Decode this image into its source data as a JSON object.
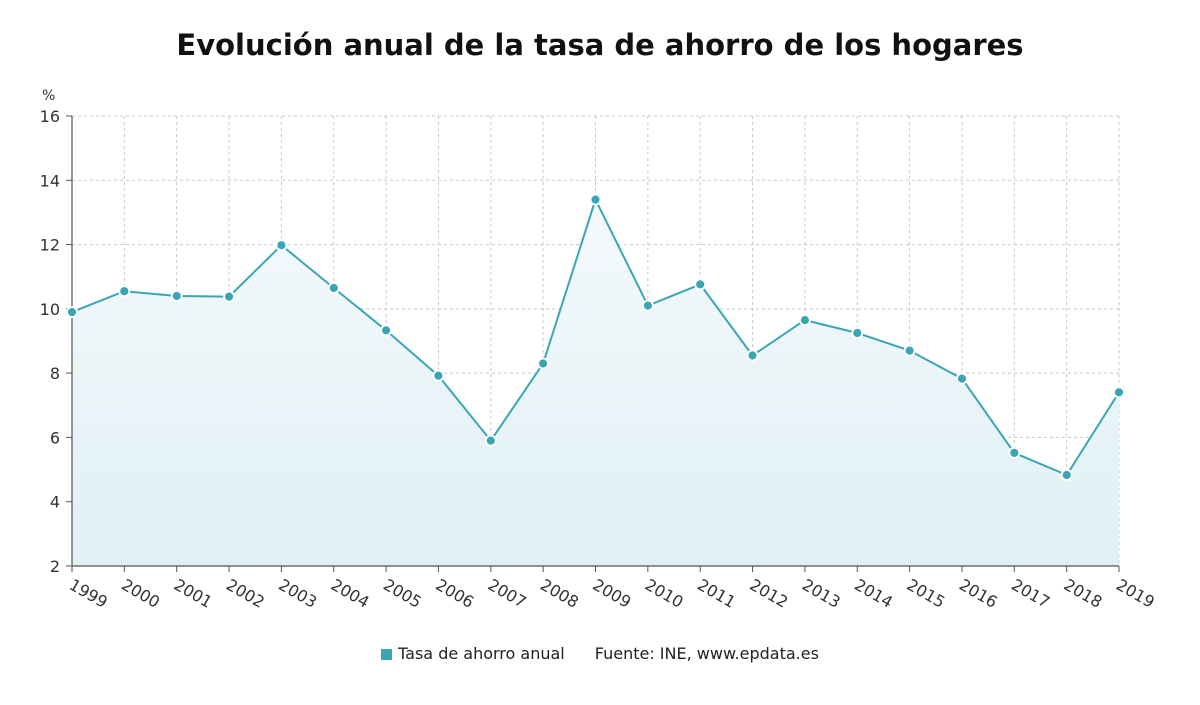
{
  "chart_data": {
    "type": "area",
    "title": "Evolución anual de la tasa de ahorro de los hogares",
    "ylabel": "%",
    "ylim": [
      2,
      16
    ],
    "yticks": [
      2,
      4,
      6,
      8,
      10,
      12,
      14,
      16
    ],
    "categories": [
      "1999",
      "2000",
      "2001",
      "2002",
      "2003",
      "2004",
      "2005",
      "2006",
      "2007",
      "2008",
      "2009",
      "2010",
      "2011",
      "2012",
      "2013",
      "2014",
      "2015",
      "2016",
      "2017",
      "2018",
      "2019"
    ],
    "series": [
      {
        "name": "Tasa de ahorro anual",
        "values": [
          9.9,
          10.55,
          10.4,
          10.38,
          11.98,
          10.65,
          9.33,
          7.92,
          5.9,
          8.3,
          13.4,
          10.1,
          10.76,
          8.55,
          9.65,
          9.25,
          8.7,
          7.83,
          5.52,
          4.83,
          7.4
        ]
      }
    ],
    "grid": true,
    "legend_position": "bottom",
    "source": "Fuente: INE, www.epdata.es",
    "colors": {
      "line": "#3aa6b3",
      "marker": "#3aa6b3",
      "fill_top": "#f5f9fd",
      "fill_bottom": "#dff0f3",
      "grid": "#c8c8c8",
      "axis": "#555555",
      "legend_swatch": "#3aa6b3"
    }
  }
}
